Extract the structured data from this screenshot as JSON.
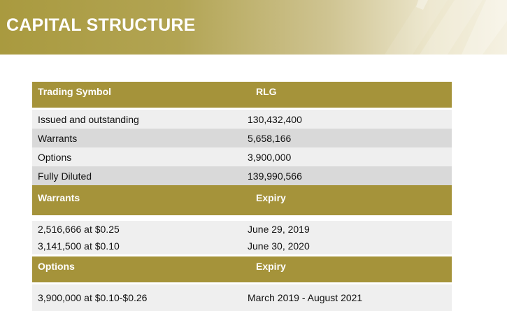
{
  "banner": {
    "title": "CAPITAL STRUCTURE"
  },
  "table": {
    "header": {
      "label": "Trading Symbol",
      "value": "RLG"
    },
    "rows": [
      {
        "label": "Issued and outstanding",
        "value": "130,432,400"
      },
      {
        "label": "Warrants",
        "value": "5,658,166"
      },
      {
        "label": "Options",
        "value": "3,900,000"
      },
      {
        "label": "Fully Diluted",
        "value": "139,990,566"
      }
    ],
    "warrants_header": {
      "label": "Warrants",
      "value": "Expiry"
    },
    "warrants": [
      {
        "label": "2,516,666 at $0.25",
        "value": "June 29, 2019"
      },
      {
        "label": "3,141,500 at $0.10",
        "value": "June 30, 2020"
      }
    ],
    "options_header": {
      "label": "Options",
      "value": "Expiry"
    },
    "options": [
      {
        "label": "3,900,000 at $0.10-$0.26",
        "value": "March 2019 - August 2021"
      }
    ]
  },
  "colors": {
    "gold": "#a5933a",
    "row_light": "#efefef",
    "row_dark": "#d9d9d9"
  }
}
